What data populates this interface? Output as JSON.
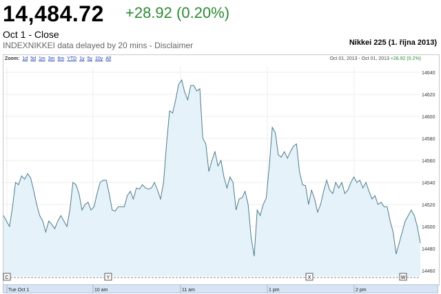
{
  "header": {
    "price": "14,484.72",
    "change": "+28.92 (0.20%)",
    "session": "Oct 1 - Close",
    "delay_note": "INDEXNIKKEI data delayed by 20 mins - Disclaimer",
    "chart_title": "Nikkei 225 (1. října 2013)"
  },
  "zoom": {
    "label": "Zoom:",
    "options": [
      "1d",
      "5d",
      "1m",
      "3m",
      "6m",
      "YTD",
      "1y",
      "5y",
      "10y",
      "All"
    ]
  },
  "range": {
    "text": "Oct 01, 2013 - Oct 01, 2013",
    "change": "+28.92 (0.2%)"
  },
  "colors": {
    "positive": "#2a8a32",
    "line": "#4a7a8a",
    "fill": "#e6f2fa",
    "link": "#1a3bb0"
  },
  "chart_data": {
    "type": "area",
    "x_ticks": [
      "Tue Oct 1",
      "10 am",
      "11 am",
      "1 pm",
      "2 pm"
    ],
    "ylim": [
      14455,
      14645
    ],
    "y_ticks": [
      14460,
      14480,
      14500,
      14520,
      14540,
      14560,
      14580,
      14600,
      14620,
      14640
    ],
    "grid": true,
    "markers": [
      "C",
      "Y",
      "X",
      "W"
    ],
    "values": [
      14510,
      14505,
      14500,
      14518,
      14540,
      14538,
      14546,
      14543,
      14548,
      14544,
      14533,
      14520,
      14510,
      14505,
      14495,
      14505,
      14502,
      14498,
      14505,
      14510,
      14505,
      14500,
      14515,
      14540,
      14538,
      14530,
      14515,
      14520,
      14522,
      14515,
      14518,
      14530,
      14540,
      14542,
      14542,
      14530,
      14515,
      14514,
      14518,
      14518,
      14518,
      14528,
      14532,
      14525,
      14535,
      14534,
      14538,
      14535,
      14534,
      14535,
      14540,
      14533,
      14525,
      14540,
      14575,
      14605,
      14603,
      14615,
      14629,
      14633,
      14622,
      14615,
      14628,
      14628,
      14623,
      14625,
      14580,
      14575,
      14550,
      14560,
      14568,
      14555,
      14560,
      14545,
      14535,
      14545,
      14540,
      14515,
      14525,
      14526,
      14532,
      14520,
      14490,
      14473,
      14515,
      14510,
      14520,
      14526,
      14555,
      14590,
      14585,
      14565,
      14563,
      14568,
      14562,
      14568,
      14573,
      14575,
      14550,
      14538,
      14537,
      14520,
      14533,
      14525,
      14513,
      14520,
      14532,
      14542,
      14533,
      14530,
      14540,
      14535,
      14540,
      14530,
      14533,
      14540,
      14545,
      14540,
      14542,
      14535,
      14540,
      14532,
      14525,
      14528,
      14520,
      14522,
      14518,
      14518,
      14505,
      14495,
      14475,
      14485,
      14495,
      14505,
      14510,
      14515,
      14510,
      14500,
      14485
    ]
  }
}
